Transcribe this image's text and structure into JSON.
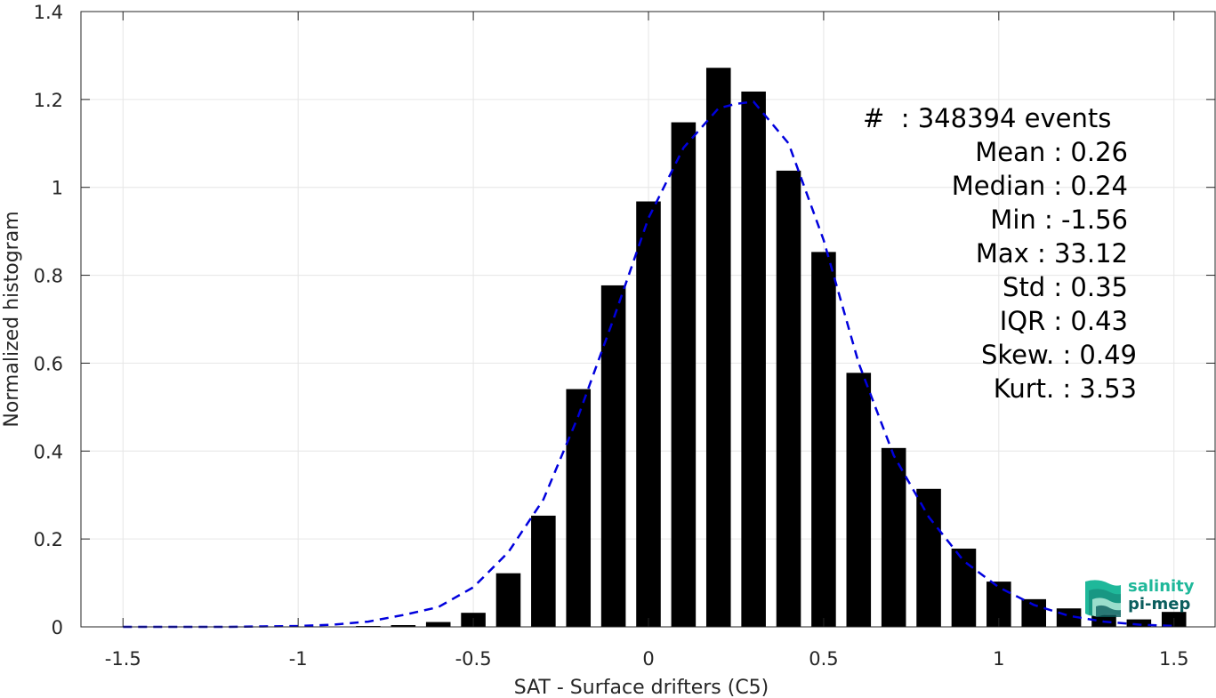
{
  "chart_data": {
    "type": "bar",
    "xlabel": "SAT - Surface drifters (C5)",
    "ylabel": "Normalized histogram",
    "xlim": [
      -1.62,
      1.62
    ],
    "ylim": [
      0,
      1.4
    ],
    "x_ticks": [
      -1.5,
      -1,
      -0.5,
      0,
      0.5,
      1,
      1.5
    ],
    "x_tick_labels": [
      "-1.5",
      "-1",
      "-0.5",
      "0",
      "0.5",
      "1",
      "1.5"
    ],
    "y_ticks": [
      0,
      0.2,
      0.4,
      0.6,
      0.8,
      1,
      1.2,
      1.4
    ],
    "y_tick_labels": [
      "0",
      "0.2",
      "0.4",
      "0.6",
      "0.8",
      "1",
      "1.2",
      "1.4"
    ],
    "grid": true,
    "bar_width": 0.07,
    "bars": {
      "color": "#000000",
      "x": [
        -0.8,
        -0.7,
        -0.6,
        -0.5,
        -0.4,
        -0.3,
        -0.2,
        -0.1,
        0.0,
        0.1,
        0.2,
        0.3,
        0.4,
        0.5,
        0.6,
        0.7,
        0.8,
        0.9,
        1.0,
        1.1,
        1.2,
        1.3,
        1.4,
        1.5
      ],
      "values": [
        0.002,
        0.004,
        0.011,
        0.032,
        0.122,
        0.253,
        0.541,
        0.777,
        0.968,
        1.148,
        1.272,
        1.218,
        1.038,
        0.853,
        0.578,
        0.407,
        0.314,
        0.178,
        0.103,
        0.063,
        0.042,
        0.027,
        0.017,
        0.034
      ]
    },
    "fit_curve": {
      "color": "#0000dd",
      "style": "dashed",
      "x": [
        -1.5,
        -1.4,
        -1.3,
        -1.2,
        -1.1,
        -1.0,
        -0.9,
        -0.8,
        -0.7,
        -0.6,
        -0.5,
        -0.4,
        -0.3,
        -0.2,
        -0.1,
        0.0,
        0.1,
        0.2,
        0.25,
        0.3,
        0.4,
        0.5,
        0.6,
        0.7,
        0.8,
        0.9,
        1.0,
        1.1,
        1.2,
        1.3,
        1.4,
        1.5
      ],
      "y": [
        0.0,
        0.0,
        0.0,
        0.0,
        0.001,
        0.002,
        0.005,
        0.012,
        0.027,
        0.045,
        0.09,
        0.17,
        0.29,
        0.48,
        0.7,
        0.93,
        1.09,
        1.18,
        1.19,
        1.195,
        1.1,
        0.88,
        0.6,
        0.39,
        0.25,
        0.15,
        0.09,
        0.05,
        0.025,
        0.012,
        0.005,
        0.002
      ]
    }
  },
  "stats": {
    "events": "#  : 348394 events",
    "mean": "Mean : 0.26",
    "median": "Median : 0.24",
    "min": "Min : -1.56",
    "max": "Max : 33.12",
    "std": "Std : 0.35",
    "iqr": "IQR : 0.43",
    "skew": "Skew. : 0.49",
    "kurt": "Kurt. : 3.53"
  },
  "logo": {
    "line1": "salinity",
    "line2": "pi-mep",
    "color_light": "#1fb89a",
    "color_dark": "#0b5e5e"
  }
}
